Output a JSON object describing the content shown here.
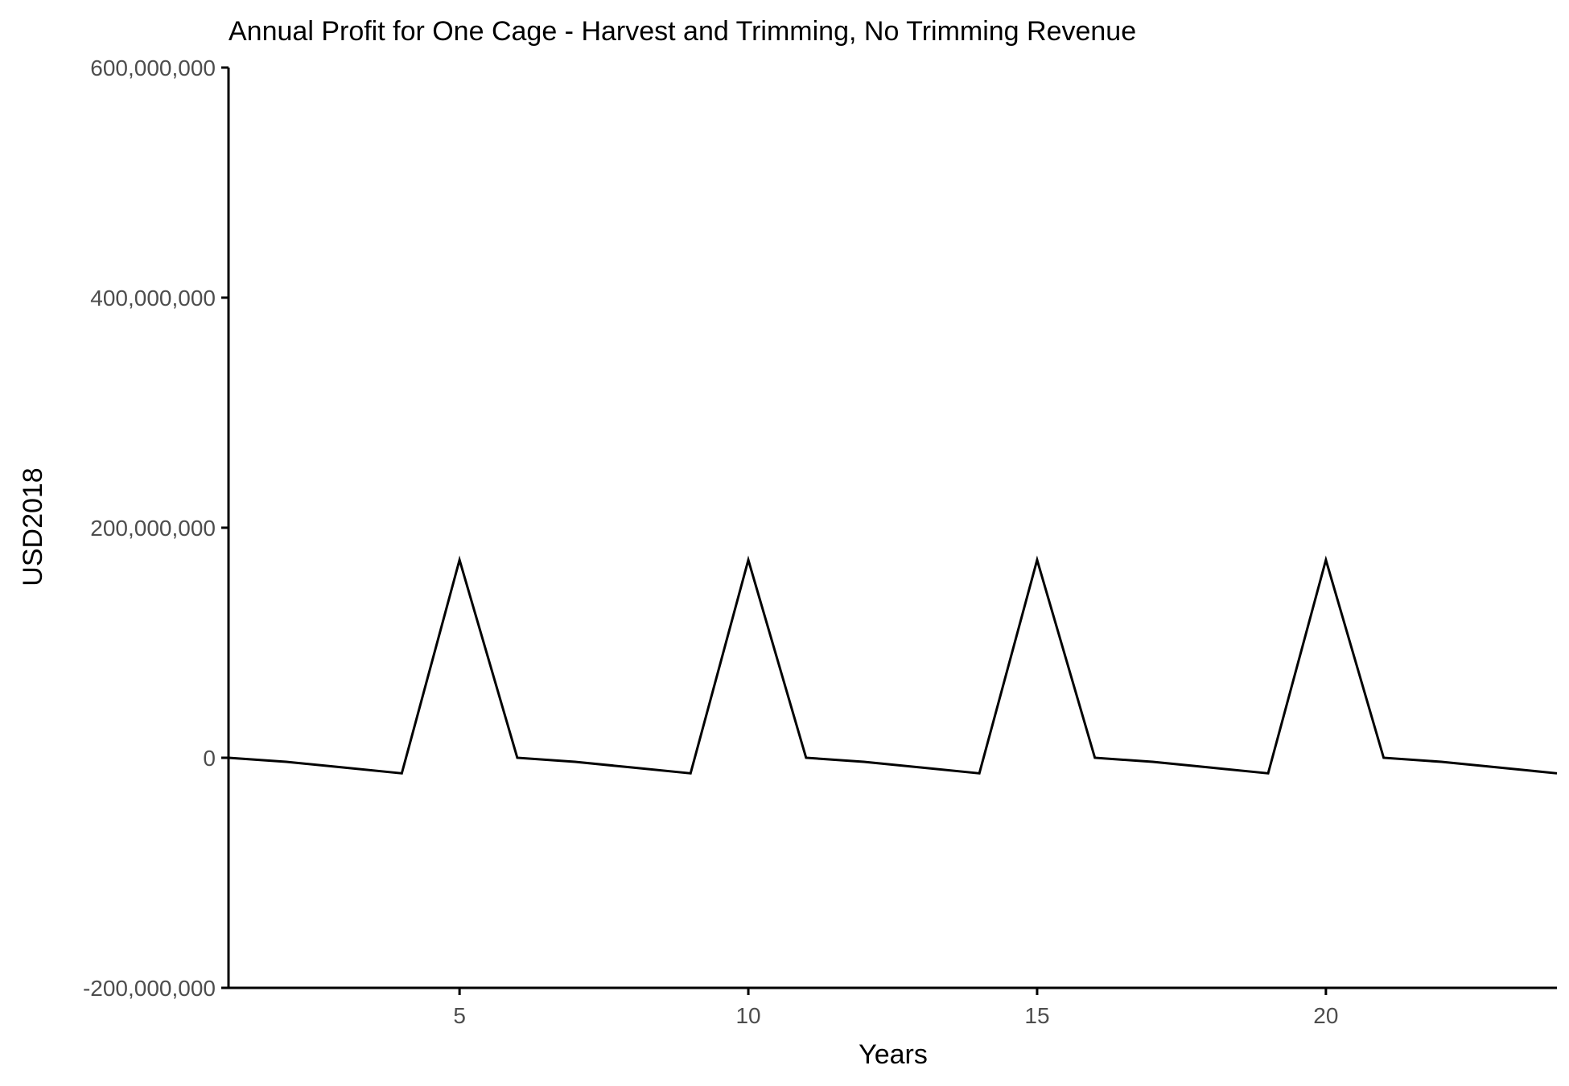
{
  "chart_data": {
    "type": "line",
    "title": "Annual Profit for One Cage - Harvest and Trimming, No Trimming Revenue",
    "xlabel": "Years",
    "ylabel": "USD2018",
    "xlim": [
      1,
      24
    ],
    "ylim": [
      -200000000,
      600000000
    ],
    "x_ticks": [
      5,
      10,
      15,
      20
    ],
    "x_tick_labels": [
      "5",
      "10",
      "15",
      "20"
    ],
    "y_ticks": [
      -200000000,
      0,
      200000000,
      400000000,
      600000000
    ],
    "y_tick_labels": [
      "-200,000,000",
      "0",
      "200,000,000",
      "400,000,000",
      "600,000,000"
    ],
    "grid": false,
    "legend": "none",
    "line_color": "#000000",
    "series": [
      {
        "x": [
          1,
          2,
          3,
          4,
          5,
          6,
          7,
          8,
          9,
          10,
          11,
          12,
          13,
          14,
          15,
          16,
          17,
          18,
          19,
          20,
          21,
          22,
          23,
          24
        ],
        "values": [
          0,
          -3500000,
          -8500000,
          -13500000,
          172000000,
          0,
          -3500000,
          -8500000,
          -13500000,
          172000000,
          0,
          -3500000,
          -8500000,
          -13500000,
          172000000,
          0,
          -3500000,
          -8500000,
          -13500000,
          172000000,
          0,
          -3500000,
          -8500000,
          -13500000
        ]
      }
    ]
  }
}
